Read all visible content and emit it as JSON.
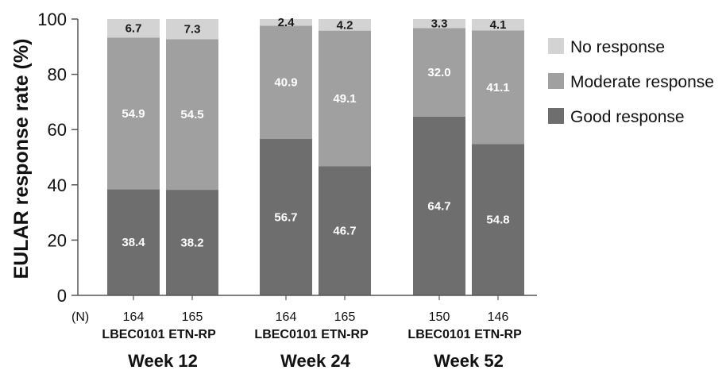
{
  "chart_data": {
    "type": "bar",
    "stacked": true,
    "ylabel": "EULAR response rate (%)",
    "ylim": [
      0,
      100
    ],
    "yticks": [
      0,
      20,
      40,
      60,
      80,
      100
    ],
    "grid": false,
    "legend_position": "right",
    "n_label": "(N)",
    "categories": [
      "LBEC0101",
      "ETN-RP",
      "LBEC0101",
      "ETN-RP",
      "LBEC0101",
      "ETN-RP"
    ],
    "n_values": [
      "164",
      "165",
      "164",
      "165",
      "150",
      "146"
    ],
    "groups": [
      {
        "label": "Week 12",
        "categories": [
          0,
          1
        ]
      },
      {
        "label": "Week 24",
        "categories": [
          2,
          3
        ]
      },
      {
        "label": "Week 52",
        "categories": [
          4,
          5
        ]
      }
    ],
    "series": [
      {
        "name": "Good response",
        "color": "#6e6e6e",
        "label_color": "#ffffff",
        "values": [
          38.4,
          38.2,
          56.7,
          46.7,
          64.7,
          54.8
        ],
        "labels": [
          "38.4",
          "38.2",
          "56.7",
          "46.7",
          "64.7",
          "54.8"
        ]
      },
      {
        "name": "Moderate response",
        "color": "#a0a0a0",
        "label_color": "#ffffff",
        "values": [
          54.9,
          54.5,
          40.9,
          49.1,
          32.0,
          41.1
        ],
        "labels": [
          "54.9",
          "54.5",
          "40.9",
          "49.1",
          "32.0",
          "41.1"
        ]
      },
      {
        "name": "No response",
        "color": "#d3d3d3",
        "label_color": "#1a1a1a",
        "values": [
          6.7,
          7.3,
          2.4,
          4.2,
          3.3,
          4.1
        ],
        "labels": [
          "6.7",
          "7.3",
          "2.4",
          "4.2",
          "3.3",
          "4.1"
        ]
      }
    ],
    "legend_order": [
      "No response",
      "Moderate response",
      "Good response"
    ]
  }
}
